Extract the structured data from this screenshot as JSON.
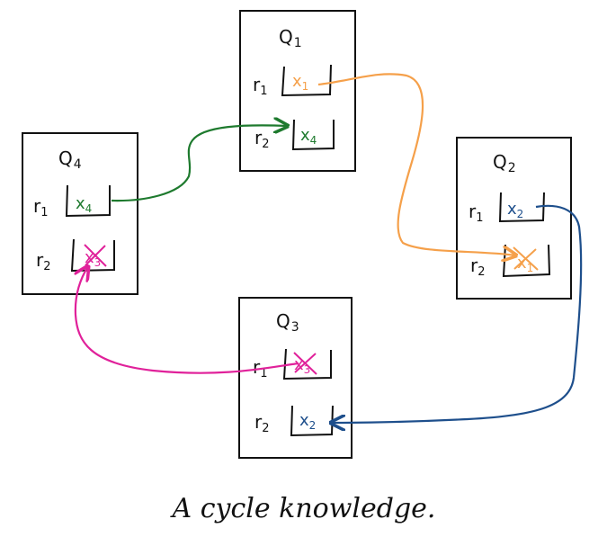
{
  "diagram": {
    "caption": "A cycle knowledge.",
    "colors": {
      "ink": "#111111",
      "orange": "#f5a04a",
      "green": "#1e7a2e",
      "blue": "#1e4f8c",
      "magenta": "#e0219a"
    },
    "agents": [
      {
        "id": "a1",
        "name": "Q",
        "sub": "1",
        "rows": [
          {
            "reg": "r",
            "regsub": "1",
            "var": "x",
            "varsub": "1",
            "color": "orange",
            "crossed": false
          },
          {
            "reg": "r",
            "regsub": "2",
            "var": "x",
            "varsub": "4",
            "color": "green",
            "crossed": false
          }
        ]
      },
      {
        "id": "a2",
        "name": "Q",
        "sub": "2",
        "rows": [
          {
            "reg": "r",
            "regsub": "1",
            "var": "x",
            "varsub": "2",
            "color": "blue",
            "crossed": false
          },
          {
            "reg": "r",
            "regsub": "2",
            "var": "x",
            "varsub": "1",
            "color": "orange",
            "crossed": true
          }
        ]
      },
      {
        "id": "a3",
        "name": "Q",
        "sub": "3",
        "rows": [
          {
            "reg": "r",
            "regsub": "1",
            "var": "x",
            "varsub": "3",
            "color": "magenta",
            "crossed": true
          },
          {
            "reg": "r",
            "regsub": "2",
            "var": "x",
            "varsub": "2",
            "color": "blue",
            "crossed": false
          }
        ]
      },
      {
        "id": "a4",
        "name": "Q",
        "sub": "4",
        "rows": [
          {
            "reg": "r",
            "regsub": "1",
            "var": "x",
            "varsub": "4",
            "color": "green",
            "crossed": false
          },
          {
            "reg": "r",
            "regsub": "2",
            "var": "x",
            "varsub": "3",
            "color": "magenta",
            "crossed": true
          }
        ]
      }
    ],
    "arrows": [
      {
        "from": "a1.r1",
        "to": "a2.r2",
        "color": "orange"
      },
      {
        "from": "a2.r1",
        "to": "a3.r2",
        "color": "blue"
      },
      {
        "from": "a3.r1",
        "to": "a4.r2",
        "color": "magenta"
      },
      {
        "from": "a4.r1",
        "to": "a1.r2",
        "color": "green"
      }
    ]
  }
}
